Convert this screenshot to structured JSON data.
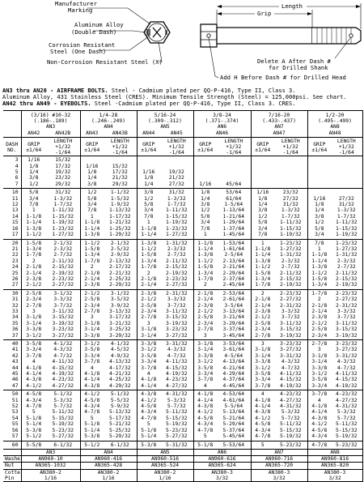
{
  "diagram": {
    "manufacturer_marking": "Manufacturer Marking",
    "aluminum_alloy": "Aluminum Alloy (Double Dash)",
    "aluminum_alloy_l1": "Aluminum Alloy",
    "aluminum_alloy_l2": "(Double Dash)",
    "corrosion_resistant_l1": "Corrosion Resistant",
    "corrosion_resistant_l2": "Steel (One Dash)",
    "non_corrosion": "Non-Corrosion Resistant Steel (X)",
    "grip": "Grip",
    "length": "Length",
    "delete_a_l1": "Delete A After Dash #",
    "delete_a_l2": "for Drilled Shank",
    "add_h": "Add H Before Dash # for Drilled Head"
  },
  "description": {
    "line1_bold": "AN3 thru AN20 - AIRFRAME BOLTS.",
    "line1_rest": " Steel - Cadmium plated per QQ-P-416, Type II, Class 3.",
    "line2": "Aluminum Alloy, 431 Stainless Steel (CRES).  Minimum Tensile Strength (Steel) = 125,000psi.  See chart.",
    "line3_bold": "AN42 thru AN49 - EYEBOLTS.",
    "line3_rest": "  Steel -Cadmium plated per QQ-P-416, Type II, Class 3.  CRES."
  },
  "table": {
    "sizes": [
      {
        "thread": "(3/16) #10-32",
        "dia": "(.186-.189)",
        "an": "AN3",
        "eyes": [
          "AN42",
          "AN42B"
        ]
      },
      {
        "thread": "1/4-28",
        "dia": "(.246-.249)",
        "an": "AN4",
        "eyes": [
          "AN43",
          "AN43B"
        ]
      },
      {
        "thread": "5/16-24",
        "dia": "(.309-.312)",
        "an": "AN5",
        "eyes": [
          "AN44",
          "AN45"
        ]
      },
      {
        "thread": "3/8-24",
        "dia": "(.371-.374)",
        "an": "AN6",
        "eyes": [
          "AN46"
        ]
      },
      {
        "thread": "7/16-20",
        "dia": "(.433-.437)",
        "an": "AN7",
        "eyes": [
          "AN47"
        ]
      },
      {
        "thread": "1/2-20",
        "dia": "(.495-.499)",
        "an": "AN8",
        "eyes": [
          "AN48"
        ]
      }
    ],
    "dash_label": "DASH NO.",
    "dash_l1": "DASH",
    "dash_l2": "NO.",
    "grip_l1": "GRIP",
    "grip_l2": "±1/64",
    "len_l1": "LENGTH",
    "len_l2": "+1/32",
    "len_l3": "-1/64",
    "rows": [
      [
        "3",
        "1/16",
        "15/32",
        "",
        "",
        "",
        "",
        "",
        "",
        "",
        "",
        "",
        ""
      ],
      [
        "4",
        "1/8",
        "17/32",
        "1/16",
        "15/32",
        "",
        "",
        "",
        "",
        "",
        "",
        "",
        ""
      ],
      [
        "5",
        "1/4",
        "19/32",
        "1/8",
        "17/32",
        "1/16",
        "19/32",
        "",
        "",
        "",
        "",
        "",
        ""
      ],
      [
        "6",
        "3/8",
        "23/32",
        "1/4",
        "21/32",
        "1/8",
        "21/32",
        "",
        "",
        "",
        "",
        "",
        ""
      ],
      [
        "7",
        "1/2",
        "29/32",
        "3/8",
        "29/32",
        "1/4",
        "27/32",
        "1/16",
        "45/64",
        "",
        "",
        "",
        ""
      ],
      [
        "10",
        "5/8",
        "31/32",
        "1/2",
        "1-1/32",
        "3/8",
        "31/32",
        "1/8",
        "53/64",
        "1/16",
        "23/32",
        "",
        ""
      ],
      [
        "11",
        "3/4",
        "1-3/32",
        "5/8",
        "1-5/32",
        "1/2",
        "1-3/32",
        "1/4",
        "61/64",
        "1/8",
        "27/32",
        "1/16",
        "27/32"
      ],
      [
        "12",
        "7/8",
        "1-7/32",
        "3/4",
        "1-9/32",
        "5/8",
        "1-7/32",
        "3/8",
        "1-5/64",
        "1/4",
        "31/32",
        "1/8",
        "31/32"
      ],
      [
        "13",
        "1",
        "1-11/32",
        "7/8",
        "1-13/32",
        "3/4",
        "1-11/32",
        "1/2",
        "1-13/64",
        "3/8",
        "1-3/32",
        "1/4",
        "1-3/32"
      ],
      [
        "14",
        "1-1/8",
        "1-15/32",
        "1",
        "1-17/32",
        "7/8",
        "1-15/32",
        "5/8",
        "1-21/64",
        "1/2",
        "1-7/32",
        "3/8",
        "1-7/32"
      ],
      [
        "15",
        "1-1/4",
        "1-19/32",
        "1-1/8",
        "1-21/32",
        "1",
        "1-19/32",
        "3/4",
        "1-29/64",
        "5/8",
        "1-11/32",
        "1/2",
        "1-11/32"
      ],
      [
        "16",
        "1-3/8",
        "1-23/32",
        "1-1/4",
        "1-25/32",
        "1-1/8",
        "1-23/32",
        "7/8",
        "1-37/64",
        "3/4",
        "1-15/32",
        "5/8",
        "1-15/32"
      ],
      [
        "17",
        "1-1/2",
        "1-27/32",
        "1-3/8",
        "1-29/32",
        "1-1/4",
        "1-27/32",
        "1",
        "1-45/64",
        "7/8",
        "1-19/32",
        "3/4",
        "1-19/32"
      ],
      [
        "20",
        "1-5/8",
        "2-1/32",
        "1-1/2",
        "2-1/32",
        "1-3/8",
        "1-31/32",
        "1-1/8",
        "1-53/64",
        "1",
        "1-23/32",
        "7/8",
        "1-23/32"
      ],
      [
        "21",
        "1-3/4",
        "2-3/32",
        "1-5/8",
        "2-5/32",
        "1-1/2",
        "2-3/32",
        "1-1/4",
        "1-61/64",
        "1-1/8",
        "1-27/32",
        "1",
        "1-27/32"
      ],
      [
        "22",
        "1-7/8",
        "2-7/32",
        "1-3/4",
        "2-9/32",
        "1-5/8",
        "2-7/32",
        "1-3/8",
        "2-5/64",
        "1-1/4",
        "1-31/32",
        "1-1/8",
        "1-31/32"
      ],
      [
        "23",
        "2",
        "2-11/32",
        "1-7/8",
        "2-13/32",
        "1-3/4",
        "2-11/32",
        "1-1/2",
        "2-13/64",
        "1-3/8",
        "2-3/32",
        "1-1/4",
        "2-3/32"
      ],
      [
        "24",
        "2-1/8",
        "2-15/32",
        "2",
        "2-17/32",
        "1-7/8",
        "2-15/32",
        "1-5/8",
        "2-21/64",
        "1-1/2",
        "2-7/32",
        "1-3/8",
        "2-7/32"
      ],
      [
        "25",
        "2-1/4",
        "2-19/32",
        "2-1/8",
        "2-21/32",
        "2",
        "2-19/32",
        "1-3/4",
        "2-29/64",
        "1-5/8",
        "2-11/32",
        "1-1/2",
        "2-11/32"
      ],
      [
        "26",
        "2-3/8",
        "2-23/32",
        "2-1/4",
        "2-25/32",
        "2-1/8",
        "2-23/32",
        "1-7/8",
        "2-37/64",
        "1-3/4",
        "2-15/32",
        "1-5/8",
        "2-15/32"
      ],
      [
        "27",
        "2-1/2",
        "2-27/32",
        "2-3/8",
        "2-29/32",
        "2-1/4",
        "2-27/32",
        "2",
        "2-45/64",
        "1-7/8",
        "2-19/32",
        "1-3/4",
        "2-19/32"
      ],
      [
        "30",
        "2-5/8",
        "3-1/32",
        "2-1/2",
        "3-1/32",
        "2-3/8",
        "2-31/32",
        "2-1/8",
        "2-53/64",
        "2",
        "2-23/32",
        "1-7/8",
        "2-23/32"
      ],
      [
        "31",
        "2-3/4",
        "3-3/32",
        "2-5/8",
        "3-5/32",
        "2-1/2",
        "3-3/32",
        "2-1/4",
        "2-61/64",
        "2-1/8",
        "2-27/32",
        "2",
        "2-27/32"
      ],
      [
        "32",
        "2-7/8",
        "3-7/32",
        "2-3/4",
        "3-9/32",
        "2-5/8",
        "3-7/32",
        "2-3/8",
        "3-5/64",
        "2-1/4",
        "2-31/32",
        "2-1/8",
        "2-31/32"
      ],
      [
        "33",
        "3",
        "3-11/32",
        "2-7/8",
        "3-13/32",
        "2-3/4",
        "3-11/32",
        "2-1/2",
        "3-13/64",
        "2-3/8",
        "3-3/32",
        "2-1/4",
        "3-3/32"
      ],
      [
        "34",
        "3-1/8",
        "3-15/32",
        "3",
        "3-17/32",
        "2-7/8",
        "3-15/32",
        "2-5/8",
        "3-21/64",
        "2-1/2",
        "3-7/32",
        "2-3/8",
        "3-7/32"
      ],
      [
        "35",
        "3-1/4",
        "3-19/32",
        "3-1/8",
        "3-21/32",
        "3",
        "3-19/32",
        "2-3/4",
        "3-29/64",
        "2-5/8",
        "3-11/32",
        "2-1/2",
        "3-11/32"
      ],
      [
        "36",
        "3-3/8",
        "3-23/32",
        "3-1/4",
        "3-25/32",
        "3-1/8",
        "3-23/32",
        "2-7/8",
        "3-37/64",
        "2-3/4",
        "3-15/32",
        "2-5/8",
        "3-15/32"
      ],
      [
        "37",
        "3-1/2",
        "3-27/32",
        "3-3/8",
        "3-29/32",
        "3-1/4",
        "3-27/32",
        "3",
        "3-45/64",
        "2-7/8",
        "3-19/32",
        "2-3/4",
        "3-19/32"
      ],
      [
        "40",
        "3-5/8",
        "4-1/32",
        "3-1/2",
        "4-1/32",
        "3-3/8",
        "3-31/32",
        "3-1/8",
        "3-53/64",
        "3",
        "3-23/32",
        "2-7/8",
        "3-23/32"
      ],
      [
        "41",
        "3-3/4",
        "4-3/32",
        "3-5/8",
        "4-5/32",
        "3-1/2",
        "4-3/32",
        "3-1/4",
        "3-61/64",
        "3-1/8",
        "3-27/32",
        "3",
        "3-27/32"
      ],
      [
        "42",
        "3-7/8",
        "4-7/32",
        "3-3/4",
        "4-9/32",
        "3-5/8",
        "4-7/32",
        "3-3/8",
        "4-5/64",
        "3-1/4",
        "3-31/32",
        "3-1/8",
        "3-31/32"
      ],
      [
        "43",
        "4",
        "4-11/32",
        "3-7/8",
        "4-13/32",
        "3-3/4",
        "4-11/32",
        "3-1/2",
        "4-13/64",
        "3-3/8",
        "4-3/32",
        "3-1/4",
        "4-3/32"
      ],
      [
        "44",
        "4-1/8",
        "4-15/32",
        "4",
        "4-17/32",
        "3-7/8",
        "4-15/32",
        "3-5/8",
        "4-21/64",
        "3-1/2",
        "4-7/32",
        "3-3/8",
        "4-7/32"
      ],
      [
        "45",
        "4-1/4",
        "4-19/32",
        "4-1/8",
        "4-21/32",
        "4",
        "4-19/32",
        "3-3/4",
        "4-29/64",
        "3-5/8",
        "4-11/32",
        "3-1/2",
        "4-11/32"
      ],
      [
        "46",
        "4-3/8",
        "4-23/32",
        "4-1/4",
        "4-25/32",
        "4-1/8",
        "4-23/32",
        "3-7/8",
        "4-37/64",
        "3-3/4",
        "4-15/32",
        "3-5/8",
        "4-15/32"
      ],
      [
        "47",
        "4-1/2",
        "4-27/32",
        "4-3/8",
        "4-29/32",
        "4-1/4",
        "4-27/32",
        "4",
        "4-45/64",
        "3-7/8",
        "4-19/32",
        "3-3/4",
        "4-19/32"
      ],
      [
        "50",
        "4-5/8",
        "5-1/32",
        "4-1/2",
        "5-1/32",
        "4-3/8",
        "4-31/32",
        "4-1/8",
        "4-53/64",
        "4",
        "4-23/32",
        "3-7/8",
        "4-23/32"
      ],
      [
        "51",
        "4-3/4",
        "5-3/32",
        "4-5/8",
        "5-5/32",
        "4-1/2",
        "5-3/32",
        "4-1/4",
        "4-61/64",
        "4-1/8",
        "4-27/32",
        "4",
        "4-27/32"
      ],
      [
        "52",
        "4-7/8",
        "5-7/32",
        "4-3/4",
        "5-9/32",
        "4-5/8",
        "5-7/32",
        "4-3/8",
        "5-5/64",
        "4-1/4",
        "4-31/32",
        "4-1/8",
        "4-31/32"
      ],
      [
        "53",
        "5",
        "5-11/32",
        "4-7/8",
        "5-13/32",
        "4-3/4",
        "5-11/32",
        "4-1/2",
        "5-13/64",
        "4-3/8",
        "5-3/32",
        "4-1/4",
        "5-3/32"
      ],
      [
        "54",
        "5-1/8",
        "5-15/32",
        "5",
        "5-17/32",
        "4-7/8",
        "5-15/32",
        "4-5/8",
        "5-21/64",
        "4-1/2",
        "5-7/32",
        "4-3/8",
        "5-7/32"
      ],
      [
        "55",
        "5-1/4",
        "5-19/32",
        "5-1/8",
        "5-21/32",
        "5",
        "5-19/32",
        "4-3/4",
        "5-29/64",
        "4-5/8",
        "5-11/32",
        "4-1/2",
        "5-11/32"
      ],
      [
        "56",
        "5-3/8",
        "5-23/32",
        "5-1/4",
        "5-25/32",
        "5-1/8",
        "5-23/32",
        "4-7/8",
        "5-37/64",
        "4-3/4",
        "5-15/32",
        "4-5/8",
        "5-15/32"
      ],
      [
        "57",
        "5-1/2",
        "5-27/32",
        "5-3/8",
        "5-29/32",
        "5-1/4",
        "5-27/32",
        "5",
        "5-45/64",
        "4-7/8",
        "5-19/32",
        "4-3/4",
        "5-19/32"
      ],
      [
        "60",
        "5-5/8",
        "6-1/32",
        "5-1/2",
        "6-1/32",
        "5-3/8",
        "5-31/32",
        "5-1/8",
        "5-53/64",
        "5",
        "5-23/32",
        "4-7/8",
        "5-23/32"
      ]
    ],
    "footer": {
      "an_row": [
        "AN3",
        "AN4",
        "AN5",
        "AN6",
        "AN7",
        "AN8"
      ],
      "washer_label": "Washer",
      "washer": [
        "AN960-10",
        "AN960-416",
        "AN960-516",
        "AN960-616",
        "AN960-716",
        "AN960-816"
      ],
      "nut_label": "Nut",
      "nut": [
        "AN365-1032",
        "AN365-428",
        "AN365-524",
        "AN365-624",
        "AN365-720",
        "AN365-820"
      ],
      "cotter_label": "Cotter",
      "pin_label": "Pin",
      "cotter": [
        "AN380-2",
        "AN380-2",
        "AN380-2",
        "AN380-3",
        "AN380-3",
        "AN380-3"
      ],
      "pin": [
        "1/16",
        "1/16",
        "1/16",
        "3/32",
        "3/32",
        "3/32"
      ]
    }
  }
}
